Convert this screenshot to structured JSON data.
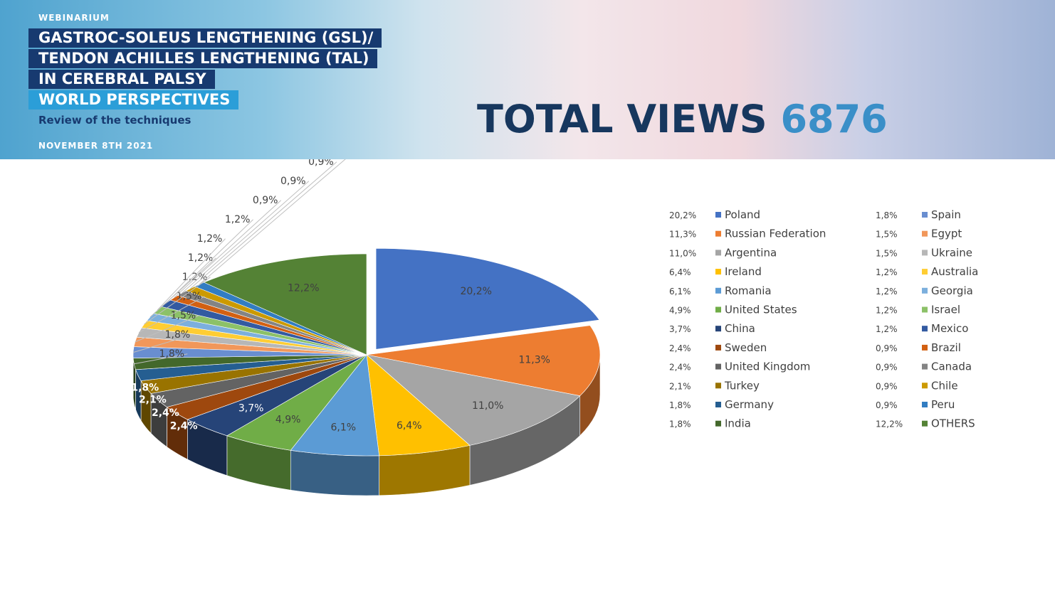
{
  "header": {
    "kicker": "WEBINARIUM",
    "title_lines": [
      "GASTROC-SOLEUS LENGTHENING (GSL)/",
      "TENDON ACHILLES LENGTHENING (TAL)",
      "IN CEREBRAL PALSY",
      "WORLD PERSPECTIVES"
    ],
    "subtitle": "Review of the techniques",
    "date": "NOVEMBER 8TH 2021"
  },
  "total_views_label": "TOTAL VIEWS",
  "total_views": 6876,
  "chart_data": {
    "type": "pie3d",
    "categories": [
      "Poland",
      "Russian Federation",
      "Argentina",
      "Ireland",
      "Romania",
      "United States",
      "China",
      "Sweden",
      "United Kingdom",
      "Turkey",
      "Germany",
      "India",
      "Spain",
      "Egypt",
      "Ukraine",
      "Australia",
      "Georgia",
      "Israel",
      "Mexico",
      "Brazil",
      "Canada",
      "Chile",
      "Peru",
      "OTHERS"
    ],
    "values": [
      20.2,
      11.3,
      11.0,
      6.4,
      6.1,
      4.9,
      3.7,
      2.4,
      2.4,
      2.1,
      1.8,
      1.8,
      1.8,
      1.5,
      1.5,
      1.2,
      1.2,
      1.2,
      1.2,
      0.9,
      0.9,
      0.9,
      0.9,
      12.2
    ],
    "value_labels": [
      "20,2%",
      "11,3%",
      "11,0%",
      "6,4%",
      "6,1%",
      "4,9%",
      "3,7%",
      "2,4%",
      "2,4%",
      "2,1%",
      "1,8%",
      "1,8%",
      "1,8%",
      "1,5%",
      "1,5%",
      "1,2%",
      "1,2%",
      "1,2%",
      "1,2%",
      "0,9%",
      "0,9%",
      "0,9%",
      "0,9%",
      "12,2%"
    ],
    "colors": [
      "#4472c4",
      "#ed7d31",
      "#a5a5a5",
      "#ffc000",
      "#5b9bd5",
      "#70ad47",
      "#264478",
      "#9e480e",
      "#636363",
      "#997300",
      "#255e91",
      "#43682b",
      "#698ed0",
      "#f1975a",
      "#b7b7b7",
      "#ffcd33",
      "#7cafdd",
      "#8cc168",
      "#335aa1",
      "#d26012",
      "#848484",
      "#cc9a00",
      "#327dc2",
      "#548235"
    ],
    "legend": "right"
  }
}
